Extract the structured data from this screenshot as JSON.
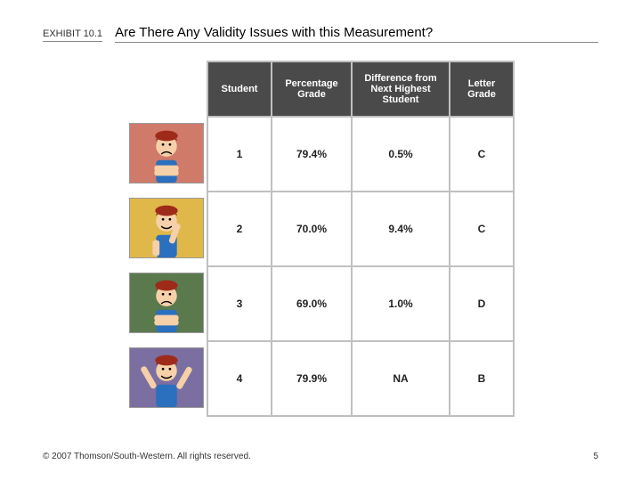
{
  "header": {
    "exhibit_label": "EXHIBIT 10.1",
    "title": "Are There Any Validity Issues with this Measurement?"
  },
  "table": {
    "columns": [
      {
        "key": "student",
        "label": "Student"
      },
      {
        "key": "pct",
        "label": "Percentage Grade"
      },
      {
        "key": "diff",
        "label": "Difference from Next Highest Student"
      },
      {
        "key": "letter",
        "label": "Letter Grade"
      }
    ],
    "rows": [
      {
        "student": "1",
        "pct": "79.4%",
        "diff": "0.5%",
        "letter": "C",
        "icon_bg": "#d07a6a",
        "pose": "crossed",
        "face": "frown"
      },
      {
        "student": "2",
        "pct": "70.0%",
        "diff": "9.4%",
        "letter": "C",
        "icon_bg": "#e0b84a",
        "pose": "wave-right",
        "face": "smile"
      },
      {
        "student": "3",
        "pct": "69.0%",
        "diff": "1.0%",
        "letter": "D",
        "icon_bg": "#5a7a4e",
        "pose": "crossed",
        "face": "frown"
      },
      {
        "student": "4",
        "pct": "79.9%",
        "diff": "NA",
        "letter": "B",
        "icon_bg": "#7a6fa0",
        "pose": "arms-up",
        "face": "smile"
      }
    ],
    "header_bg": "#4a4a4a",
    "header_fg": "#ffffff",
    "border_color": "#c0c0c0",
    "skin_color": "#f5d0a9",
    "hat_color": "#9e2b1a",
    "shirt_color": "#2b6fbf"
  },
  "footer": {
    "copyright": "© 2007 Thomson/South-Western. All rights reserved.",
    "page_number": "5"
  }
}
